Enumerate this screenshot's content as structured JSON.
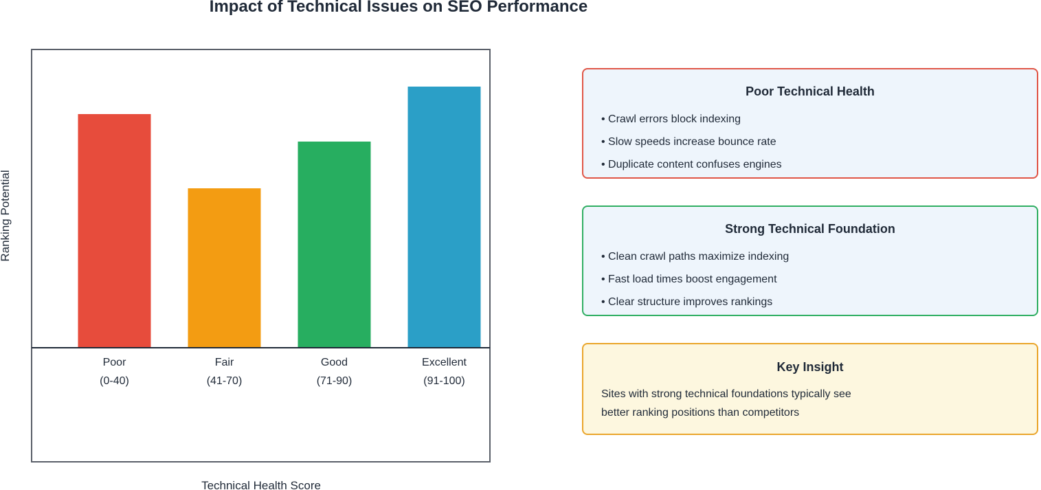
{
  "title": "Impact of Technical Issues on SEO Performance",
  "chart_data": {
    "type": "bar",
    "title": "Impact of Technical Issues on SEO Performance",
    "xlabel": "Technical Health Score",
    "ylabel": "Ranking Potential",
    "categories": [
      {
        "name": "Poor",
        "range": "(0-40)"
      },
      {
        "name": "Fair",
        "range": "(41-70)"
      },
      {
        "name": "Good",
        "range": "(71-90)"
      },
      {
        "name": "Excellent",
        "range": "(91-100)"
      }
    ],
    "values": [
      85,
      58,
      75,
      95
    ],
    "colors": [
      "#e74c3c",
      "#f39c12",
      "#27ae60",
      "#2b9fc7"
    ],
    "ylim": [
      0,
      100
    ],
    "grid": false,
    "legend": "none"
  },
  "cards": {
    "poor": {
      "title": "Poor Technical Health",
      "items": [
        "• Crawl errors block indexing",
        "• Slow speeds increase bounce rate",
        "• Duplicate content confuses engines"
      ],
      "border_color": "#e05546",
      "background": "#eef5fc"
    },
    "strong": {
      "title": "Strong Technical Foundation",
      "items": [
        "• Clean crawl paths maximize indexing",
        "• Fast load times boost engagement",
        "• Clear structure improves rankings"
      ],
      "border_color": "#2fae62",
      "background": "#eef5fc"
    },
    "insight": {
      "title": "Key Insight",
      "items": [
        "Sites with strong technical foundations typically see",
        "better ranking positions than competitors"
      ],
      "border_color": "#eaa52a",
      "background": "#fdf7df"
    }
  }
}
